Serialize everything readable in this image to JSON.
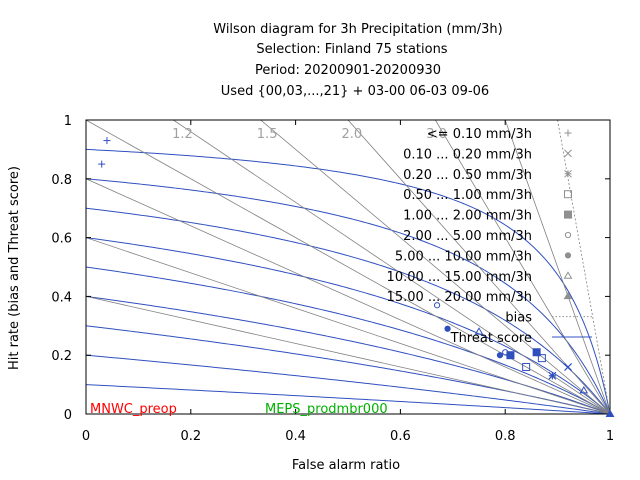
{
  "chart_data": {
    "type": "scatter",
    "title_lines": [
      "Wilson diagram  for 3h Precipitation (mm/3h)",
      "Selection: Finland     75 stations",
      "Period: 20200901-20200930",
      "Used {00,03,...,21} + 03-00 06-03 09-06"
    ],
    "xlabel": "False alarm ratio",
    "ylabel": "Hit rate (bias and Threat score)",
    "xlim": [
      0,
      1
    ],
    "ylim": [
      0,
      1
    ],
    "x_ticks": [
      "0",
      "0.2",
      "0.4",
      "0.6",
      "0.8",
      "1"
    ],
    "y_ticks": [
      "0",
      "0.2",
      "0.4",
      "0.6",
      "0.8",
      "1"
    ],
    "bias_lines": [
      0.4,
      0.6,
      0.8,
      1.0,
      1.2,
      1.5,
      2.0,
      3.0,
      5.0
    ],
    "bias_labels": [
      {
        "text": "1.2",
        "value": 1.2
      },
      {
        "text": "1.5",
        "value": 1.5
      },
      {
        "text": "2.0",
        "value": 2.0
      },
      {
        "text": "3.0",
        "value": 3.0
      }
    ],
    "threat_score_lines": [
      0.1,
      0.2,
      0.3,
      0.4,
      0.5,
      0.6,
      0.7,
      0.8,
      0.9
    ],
    "legend_position": "top-right",
    "legend": [
      {
        "label": "<= 0.10 mm/3h",
        "symbol": "plus"
      },
      {
        "label": "0.10 ... 0.20 mm/3h",
        "symbol": "cross"
      },
      {
        "label": "0.20 ... 0.50 mm/3h",
        "symbol": "star"
      },
      {
        "label": "0.50 ... 1.00 mm/3h",
        "symbol": "open-square"
      },
      {
        "label": "1.00 ... 2.00 mm/3h",
        "symbol": "filled-square"
      },
      {
        "label": "2.00 ... 5.00 mm/3h",
        "symbol": "open-circle"
      },
      {
        "label": "5.00 ... 10.00 mm/3h",
        "symbol": "filled-circle"
      },
      {
        "label": "10.00 ... 15.00 mm/3h",
        "symbol": "open-triangle"
      },
      {
        "label": "15.00 ... 20.00 mm/3h",
        "symbol": "filled-triangle"
      },
      {
        "label": "bias",
        "symbol": "dotted-line"
      },
      {
        "label": "Threat score",
        "symbol": "solid-line"
      }
    ],
    "series": [
      {
        "name": "MNWC_preop",
        "color": "#ff0000",
        "points": [
          {
            "far": 0.04,
            "hr": 0.93,
            "symbol": "plus"
          },
          {
            "far": 0.92,
            "hr": 0.16,
            "symbol": "cross"
          },
          {
            "far": 0.89,
            "hr": 0.13,
            "symbol": "star"
          },
          {
            "far": 0.87,
            "hr": 0.19,
            "symbol": "open-square"
          },
          {
            "far": 0.86,
            "hr": 0.21,
            "symbol": "filled-square"
          },
          {
            "far": 0.8,
            "hr": 0.21,
            "symbol": "open-circle"
          },
          {
            "far": 0.79,
            "hr": 0.2,
            "symbol": "filled-circle"
          },
          {
            "far": 0.75,
            "hr": 0.28,
            "symbol": "open-triangle"
          },
          {
            "far": 1.0,
            "hr": 0.0,
            "symbol": "filled-triangle"
          }
        ]
      },
      {
        "name": "MEPS_prodmbr000",
        "color": "#00b000",
        "points": [
          {
            "far": 0.03,
            "hr": 0.85,
            "symbol": "plus"
          },
          {
            "far": 0.92,
            "hr": 0.16,
            "symbol": "cross"
          },
          {
            "far": 0.89,
            "hr": 0.13,
            "symbol": "star"
          },
          {
            "far": 0.84,
            "hr": 0.16,
            "symbol": "open-square"
          },
          {
            "far": 0.81,
            "hr": 0.2,
            "symbol": "filled-square"
          },
          {
            "far": 0.67,
            "hr": 0.37,
            "symbol": "open-circle"
          },
          {
            "far": 0.69,
            "hr": 0.29,
            "symbol": "filled-circle"
          },
          {
            "far": 0.95,
            "hr": 0.08,
            "symbol": "open-triangle"
          },
          {
            "far": 1.0,
            "hr": 0.0,
            "symbol": "filled-triangle"
          }
        ]
      }
    ]
  }
}
